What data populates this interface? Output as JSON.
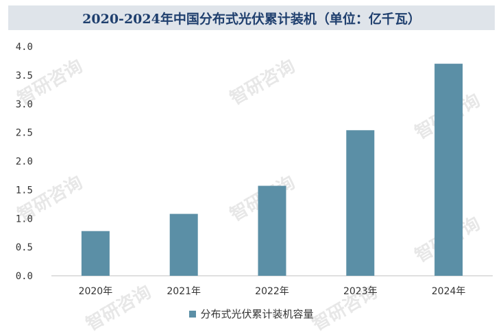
{
  "title": "2020-2024年中国分布式光伏累计装机（单位：亿千瓦）",
  "watermark_text": "智研咨询",
  "colors": {
    "bar": "#5b8fa6",
    "title_bg": "#dfe4ea",
    "title_text": "#1f3f6e"
  },
  "chart_data": {
    "type": "bar",
    "title": "2020-2024年中国分布式光伏累计装机（单位：亿千瓦）",
    "categories": [
      "2020年",
      "2021年",
      "2022年",
      "2023年",
      "2024年"
    ],
    "series": [
      {
        "name": "分布式光伏累计装机容量",
        "values": [
          0.78,
          1.08,
          1.57,
          2.54,
          3.7
        ]
      }
    ],
    "yticks": [
      "0.0",
      "0.5",
      "1.0",
      "1.5",
      "2.0",
      "2.5",
      "3.0",
      "3.5",
      "4.0"
    ],
    "ylim": [
      0,
      4
    ],
    "grid": false,
    "legend": "bottom-center"
  }
}
